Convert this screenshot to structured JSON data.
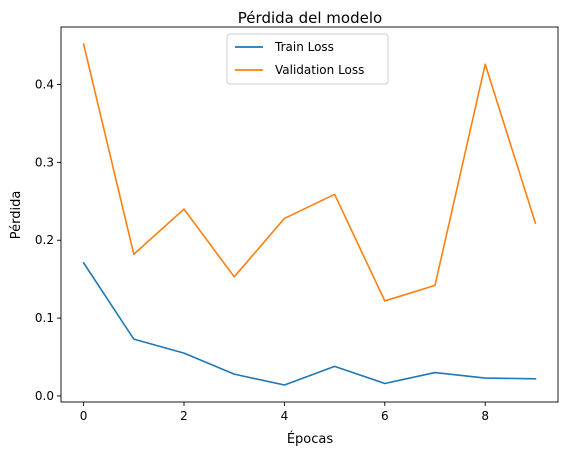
{
  "chart_data": {
    "type": "line",
    "title": "Pérdida del modelo",
    "xlabel": "Épocas",
    "ylabel": "Pérdida",
    "x": [
      0,
      1,
      2,
      3,
      4,
      5,
      6,
      7,
      8,
      9
    ],
    "series": [
      {
        "name": "Train Loss",
        "color": "#1f77b4",
        "values": [
          0.171,
          0.073,
          0.055,
          0.028,
          0.014,
          0.038,
          0.016,
          0.03,
          0.023,
          0.022
        ]
      },
      {
        "name": "Validation Loss",
        "color": "#ff7f0e",
        "values": [
          0.452,
          0.182,
          0.24,
          0.153,
          0.228,
          0.259,
          0.122,
          0.142,
          0.426,
          0.222
        ]
      }
    ],
    "xticks": [
      0,
      2,
      4,
      6,
      8
    ],
    "xtick_labels": [
      "0",
      "2",
      "4",
      "6",
      "8"
    ],
    "yticks": [
      0.0,
      0.1,
      0.2,
      0.3,
      0.4
    ],
    "ytick_labels": [
      "0.0",
      "0.1",
      "0.2",
      "0.3",
      "0.4"
    ],
    "xlim": [
      -0.45,
      9.45
    ],
    "ylim": [
      -0.0078,
      0.4739
    ],
    "grid": false,
    "legend_position": "upper center"
  }
}
